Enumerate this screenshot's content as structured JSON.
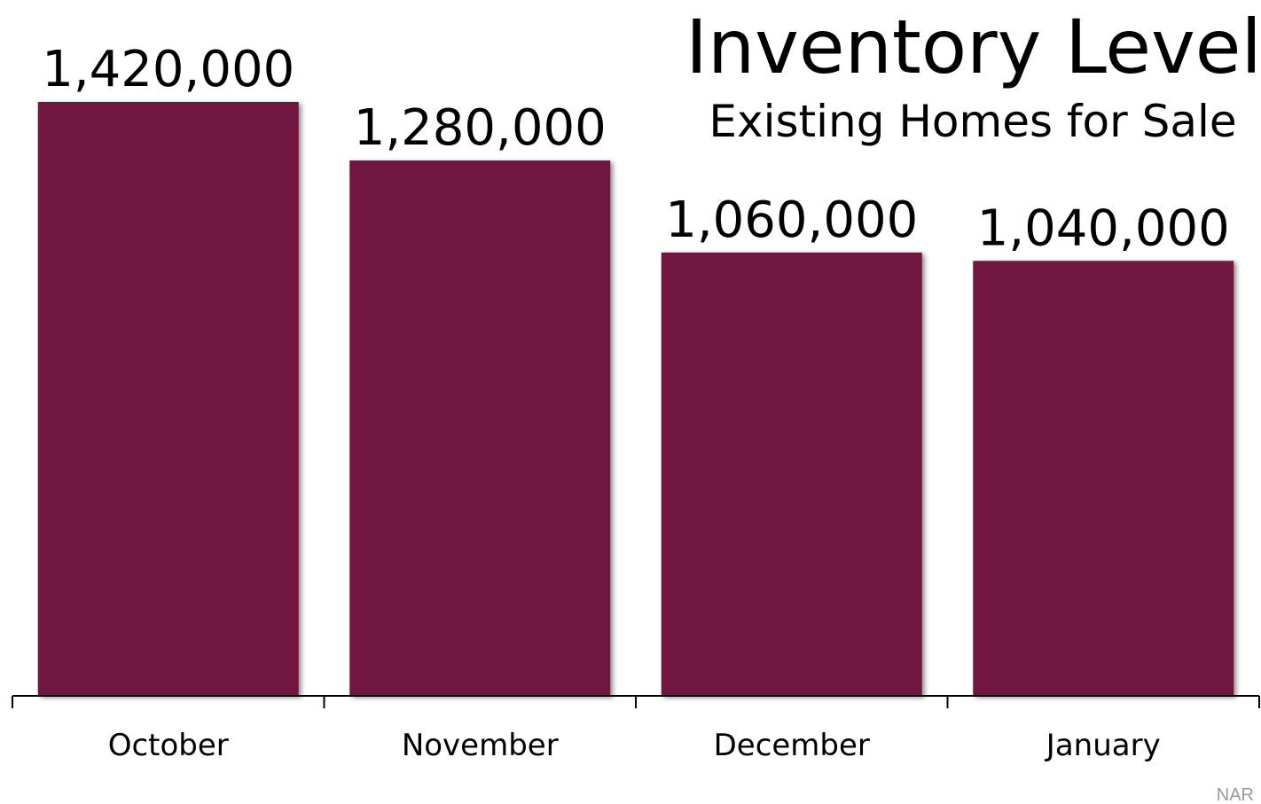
{
  "chart_data": {
    "type": "bar",
    "title": "Inventory Level",
    "subtitle": "Existing Homes for Sale",
    "categories": [
      "October",
      "November",
      "December",
      "January"
    ],
    "values": [
      1420000,
      1280000,
      1060000,
      1040000
    ],
    "value_labels": [
      "1,420,000",
      "1,280,000",
      "1,060,000",
      "1,040,000"
    ],
    "ylim": [
      0,
      1420000
    ],
    "grid": false,
    "bar_color": "#701340",
    "source": "NAR"
  }
}
